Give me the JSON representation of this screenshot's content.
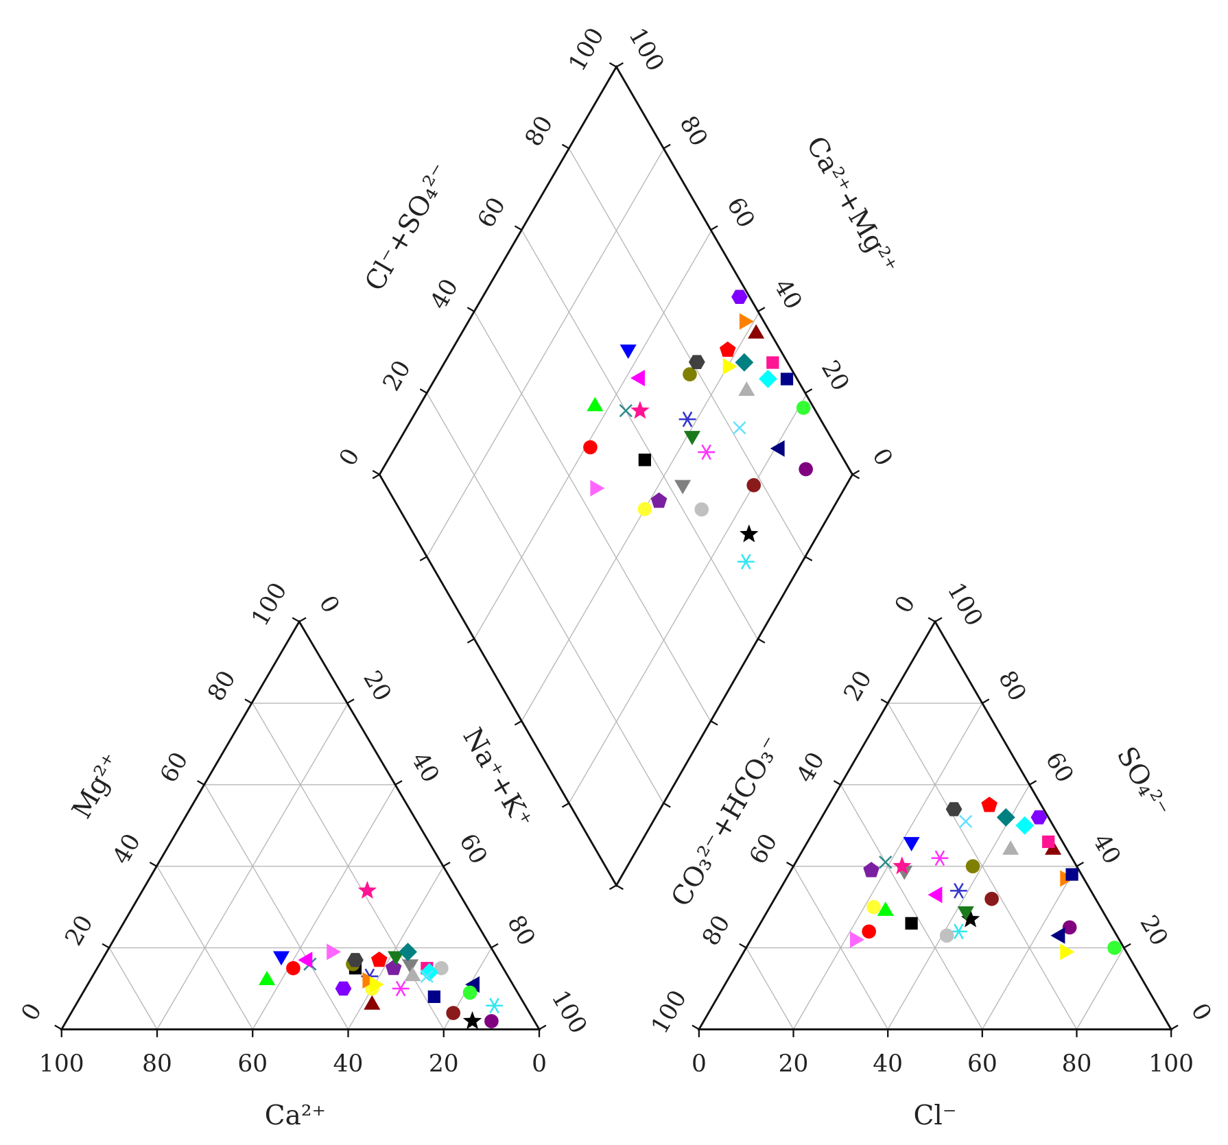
{
  "chart_data": {
    "type": "piper",
    "lim": [
      0,
      100
    ],
    "ticks": [
      0,
      20,
      40,
      60,
      80,
      100
    ],
    "labels": {
      "ca": "Ca²⁺",
      "mg": "Mg²⁺",
      "nak": "Na⁺+K⁺",
      "cl": "Cl⁻",
      "so4": "SO₄²⁻",
      "hco3": "CO₃²⁻+HCO₃⁻",
      "clso4": "Cl⁻+SO₄²⁻",
      "camg": "Ca²⁺+Mg²⁺"
    },
    "samples": [
      {
        "color": "#000000",
        "marker": "star",
        "ca": 13,
        "mg": 2,
        "cl": 44,
        "so4": 27
      },
      {
        "color": "#33e6f0",
        "marker": "asterisk",
        "ca": 6.5,
        "mg": 5.8,
        "cl": 43,
        "so4": 24
      },
      {
        "color": "#800080",
        "marker": "circle",
        "ca": 9,
        "mg": 2,
        "cl": 66,
        "so4": 25
      },
      {
        "color": "#8b1a1a",
        "marker": "circle",
        "ca": 16,
        "mg": 4,
        "cl": 46,
        "so4": 32
      },
      {
        "color": "#c0c0c0",
        "marker": "circle",
        "ca": 13,
        "mg": 15,
        "cl": 41,
        "so4": 23
      },
      {
        "color": "#7b1fa2",
        "marker": "pentagon",
        "ca": 23,
        "mg": 15,
        "cl": 17,
        "so4": 39
      },
      {
        "color": "#808080",
        "marker": "down",
        "ca": 19,
        "mg": 16,
        "cl": 24,
        "so4": 39
      },
      {
        "color": "#ff66ff",
        "marker": "right",
        "ca": 34,
        "mg": 19,
        "cl": 22,
        "so4": 22
      },
      {
        "color": "#ffff33",
        "marker": "circle",
        "ca": 30,
        "mg": 10,
        "cl": 22,
        "so4": 30
      },
      {
        "color": "#000000",
        "marker": "square",
        "ca": 31,
        "mg": 15,
        "cl": 32,
        "so4": 26
      },
      {
        "color": "#ff0000",
        "marker": "circle",
        "ca": 44,
        "mg": 15,
        "cl": 24,
        "so4": 24
      },
      {
        "color": "#1a7a1a",
        "marker": "down",
        "ca": 21,
        "mg": 18,
        "cl": 42,
        "so4": 29
      },
      {
        "color": "#ff33ff",
        "marker": "asterisk",
        "ca": 24,
        "mg": 10,
        "cl": 30,
        "so4": 42
      },
      {
        "color": "#3333cc",
        "marker": "asterisk",
        "ca": 29,
        "mg": 13,
        "cl": 38,
        "so4": 34
      },
      {
        "color": "#00ff00",
        "marker": "up",
        "ca": 51,
        "mg": 12,
        "cl": 25,
        "so4": 29
      },
      {
        "color": "#2e8b8b",
        "marker": "x",
        "ca": 40,
        "mg": 16,
        "cl": 19,
        "so4": 41
      },
      {
        "color": "#ff1493",
        "marker": "star",
        "ca": 19,
        "mg": 34,
        "cl": 23,
        "so4": 40
      },
      {
        "color": "#ff00ff",
        "marker": "left",
        "ca": 40,
        "mg": 17,
        "cl": 34,
        "so4": 33
      },
      {
        "color": "#0000ff",
        "marker": "down",
        "ca": 45,
        "mg": 18,
        "cl": 22,
        "so4": 46
      },
      {
        "color": "#808000",
        "marker": "circle",
        "ca": 31,
        "mg": 16,
        "cl": 38,
        "so4": 40
      },
      {
        "color": "#404040",
        "marker": "hexagon",
        "ca": 30,
        "mg": 17,
        "cl": 27,
        "so4": 54
      },
      {
        "color": "#ff0000",
        "marker": "pentagon",
        "ca": 25,
        "mg": 17,
        "cl": 34,
        "so4": 55
      },
      {
        "color": "#008080",
        "marker": "diamond",
        "ca": 18,
        "mg": 19,
        "cl": 39,
        "so4": 52
      },
      {
        "color": "#8b0000",
        "marker": "up",
        "ca": 32,
        "mg": 6,
        "cl": 53,
        "so4": 44
      },
      {
        "color": "#ff8000",
        "marker": "right",
        "ca": 30,
        "mg": 12,
        "cl": 59,
        "so4": 37
      },
      {
        "color": "#7f00ff",
        "marker": "hexagon",
        "ca": 36,
        "mg": 10,
        "cl": 46,
        "so4": 52
      },
      {
        "color": "#ff1493",
        "marker": "square",
        "ca": 16,
        "mg": 15,
        "cl": 51,
        "so4": 46
      },
      {
        "color": "#00ffff",
        "marker": "diamond",
        "ca": 16,
        "mg": 14,
        "cl": 44,
        "so4": 50
      },
      {
        "color": "#000080",
        "marker": "left",
        "ca": 8,
        "mg": 11,
        "cl": 65,
        "so4": 23
      },
      {
        "color": "#33ff33",
        "marker": "circle",
        "ca": 10,
        "mg": 9,
        "cl": 78,
        "so4": 20
      },
      {
        "color": "#b0b0b0",
        "marker": "up",
        "ca": 20,
        "mg": 13,
        "cl": 44,
        "so4": 44
      },
      {
        "color": "#66e0ff",
        "marker": "x",
        "ca": 17,
        "mg": 13,
        "cl": 31,
        "so4": 51
      },
      {
        "color": "#ffff00",
        "marker": "right",
        "ca": 29,
        "mg": 11,
        "cl": 68,
        "so4": 19
      },
      {
        "color": "#00008b",
        "marker": "square",
        "ca": 18,
        "mg": 8,
        "cl": 60,
        "so4": 38
      }
    ]
  }
}
